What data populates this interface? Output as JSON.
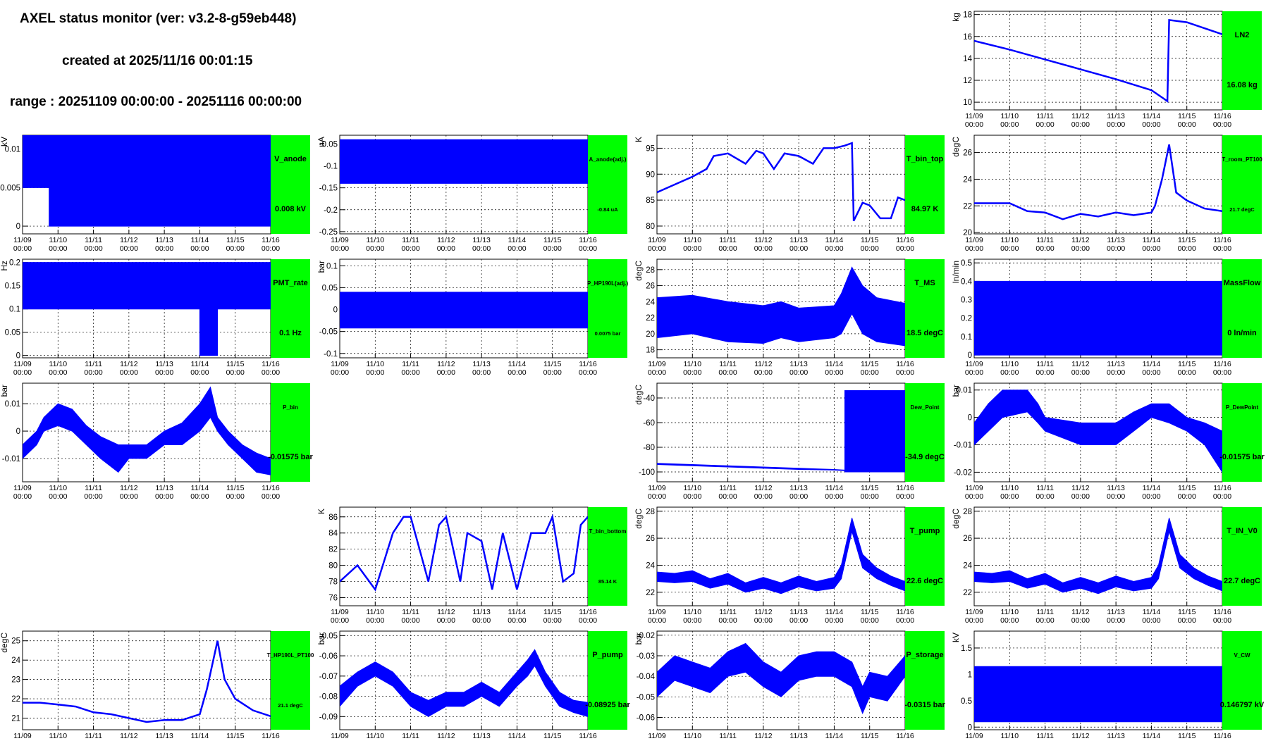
{
  "header": {
    "title": "AXEL status monitor (ver: v3.2-8-g59eb448)",
    "created": "created at 2025/11/16 00:01:15",
    "range": "range : 20251109 00:00:00 - 20251116 00:00:00"
  },
  "colors": {
    "series": "#0000ff",
    "status_panel": "#00ff00",
    "grid": "#000000"
  },
  "x_labels": [
    "11/09",
    "11/10",
    "11/11",
    "11/12",
    "11/13",
    "11/14",
    "11/15",
    "11/16"
  ],
  "x_time_label": "00:00",
  "chart_data": [
    {
      "id": "LN2",
      "type": "line",
      "name": "LN2",
      "value_label": "16.08 kg",
      "ylabel": "kg",
      "ylim": [
        9.3,
        18.3
      ],
      "yticks": [
        10,
        12,
        14,
        16,
        18
      ],
      "yticklabels": [
        "10",
        "12",
        "14",
        "16",
        "18"
      ],
      "style": "line",
      "x": [
        0,
        1,
        2,
        3,
        4,
        5,
        5.45,
        5.5,
        6,
        7
      ],
      "y": [
        15.6,
        14.8,
        13.9,
        13.0,
        12.1,
        11.1,
        10.1,
        17.5,
        17.3,
        16.2
      ]
    },
    {
      "id": "V_anode",
      "type": "line",
      "name": "V_anode",
      "value_label": "0.008 kV",
      "ylabel": "kV",
      "ylim": [
        -0.001,
        0.0118
      ],
      "yticks": [
        0,
        0.005,
        0.01
      ],
      "yticklabels": [
        "0",
        "0.005",
        "0.01"
      ],
      "style": "band",
      "x": [
        0,
        0.75,
        0.75,
        7
      ],
      "lo": [
        0.005,
        0.005,
        0,
        0
      ],
      "hi": [
        0.0118,
        0.0118,
        0.0118,
        0.0118
      ]
    },
    {
      "id": "A_anode",
      "type": "line",
      "name": "A_anode(adj.)",
      "value_label": "-0.84 uA",
      "ylabel": "uA",
      "ylim": [
        -0.255,
        -0.03
      ],
      "yticks": [
        -0.25,
        -0.2,
        -0.15,
        -0.1,
        -0.05
      ],
      "yticklabels": [
        "-0.25",
        "-0.2",
        "-0.15",
        "-0.1",
        "-0.05"
      ],
      "style": "band",
      "x": [
        0,
        7
      ],
      "lo": [
        -0.14,
        -0.14
      ],
      "hi": [
        -0.04,
        -0.04
      ]
    },
    {
      "id": "T_bin_top",
      "type": "line",
      "name": "T_bin_top",
      "value_label": "84.97 K",
      "ylabel": "K",
      "ylim": [
        78.5,
        97.5
      ],
      "yticks": [
        80,
        85,
        90,
        95
      ],
      "yticklabels": [
        "80",
        "85",
        "90",
        "95"
      ],
      "style": "line",
      "x": [
        0,
        0.5,
        1,
        1.4,
        1.6,
        2,
        2.5,
        2.8,
        3,
        3.3,
        3.6,
        4,
        4.4,
        4.7,
        5,
        5.3,
        5.5,
        5.55,
        5.8,
        6,
        6.3,
        6.6,
        6.8,
        7
      ],
      "y": [
        86.5,
        88,
        89.5,
        91,
        93.5,
        94,
        92,
        94.5,
        94,
        91,
        94,
        93.5,
        92,
        95,
        95,
        95.5,
        96,
        81,
        84.5,
        84,
        81.5,
        81.5,
        85.5,
        85
      ]
    },
    {
      "id": "T_room_PT100",
      "type": "line",
      "name": "T_room_PT100",
      "value_label": "21.7 degC",
      "ylabel": "degC",
      "ylim": [
        19.9,
        27.3
      ],
      "yticks": [
        20,
        22,
        24,
        26
      ],
      "yticklabels": [
        "20",
        "22",
        "24",
        "26"
      ],
      "style": "line",
      "x": [
        0,
        1,
        1.5,
        2,
        2.5,
        3,
        3.5,
        4,
        4.5,
        5,
        5.1,
        5.3,
        5.5,
        5.7,
        6,
        6.5,
        7
      ],
      "y": [
        22.2,
        22.2,
        21.6,
        21.5,
        21.0,
        21.4,
        21.2,
        21.5,
        21.3,
        21.5,
        22,
        24,
        26.6,
        23,
        22.4,
        21.8,
        21.6
      ]
    },
    {
      "id": "PMT_rate",
      "type": "line",
      "name": "PMT_rate",
      "value_label": "0.1 Hz",
      "ylabel": "Hz",
      "ylim": [
        -0.005,
        0.207
      ],
      "yticks": [
        0,
        0.05,
        0.1,
        0.15,
        0.2
      ],
      "yticklabels": [
        "0",
        "0.05",
        "0.1",
        "0.15",
        "0.2"
      ],
      "style": "band",
      "x": [
        0,
        5,
        5,
        5.5,
        5.5,
        7
      ],
      "lo": [
        0.1,
        0.1,
        0,
        0,
        0.1,
        0.1
      ],
      "hi": [
        0.2,
        0.2,
        0.2,
        0.2,
        0.2,
        0.2
      ]
    },
    {
      "id": "P_HP190L",
      "type": "line",
      "name": "P_HP190L(adj.)",
      "value_label": "0.0075 bar",
      "ylabel": "bar",
      "ylim": [
        -0.11,
        0.115
      ],
      "yticks": [
        -0.1,
        -0.05,
        0,
        0.05,
        0.1
      ],
      "yticklabels": [
        "-0.1",
        "-0.05",
        "0",
        "0.05",
        "0.1"
      ],
      "style": "band",
      "x": [
        0,
        7
      ],
      "lo": [
        -0.042,
        -0.042
      ],
      "hi": [
        0.04,
        0.04
      ]
    },
    {
      "id": "T_MS",
      "type": "line",
      "name": "T_MS",
      "value_label": "18.5 degC",
      "ylabel": "degC",
      "ylim": [
        17,
        29.3
      ],
      "yticks": [
        18,
        20,
        22,
        24,
        26,
        28
      ],
      "yticklabels": [
        "18",
        "20",
        "22",
        "24",
        "26",
        "28"
      ],
      "style": "band",
      "x": [
        0,
        1,
        2,
        3,
        3.5,
        4,
        5,
        5.2,
        5.5,
        5.8,
        6.2,
        7
      ],
      "lo": [
        19.5,
        20,
        19,
        18.8,
        19.5,
        19,
        19.5,
        20,
        22.5,
        20,
        19,
        18.5
      ],
      "hi": [
        24.5,
        24.8,
        24,
        23.5,
        24,
        23.2,
        23.5,
        25,
        28.3,
        26,
        24.5,
        23.8
      ]
    },
    {
      "id": "MassFlow",
      "type": "line",
      "name": "MassFlow",
      "value_label": "0 ln/min",
      "ylabel": "ln/min",
      "ylim": [
        -0.015,
        0.52
      ],
      "yticks": [
        0,
        0.1,
        0.2,
        0.3,
        0.4,
        0.5
      ],
      "yticklabels": [
        "0",
        "0.1",
        "0.2",
        "0.3",
        "0.4",
        "0.5"
      ],
      "style": "band",
      "x": [
        0,
        7
      ],
      "lo": [
        0,
        0
      ],
      "hi": [
        0.4,
        0.4
      ]
    },
    {
      "id": "P_bin",
      "type": "line",
      "name": "P_bin",
      "value_label": "-0.01575 bar",
      "ylabel": "bar",
      "ylim": [
        -0.0185,
        0.0175
      ],
      "yticks": [
        -0.01,
        0,
        0.01
      ],
      "yticklabels": [
        "-0.01",
        "0",
        "0.01"
      ],
      "style": "band",
      "x": [
        0,
        0.4,
        0.6,
        1,
        1.4,
        1.8,
        2.2,
        2.7,
        3,
        3.5,
        4,
        4.5,
        5,
        5.3,
        5.5,
        5.8,
        6.2,
        6.6,
        7
      ],
      "lo": [
        -0.01,
        -0.005,
        0,
        0.002,
        0,
        -0.005,
        -0.01,
        -0.015,
        -0.01,
        -0.01,
        -0.005,
        -0.005,
        0,
        0.005,
        0,
        -0.005,
        -0.01,
        -0.015,
        -0.016
      ],
      "hi": [
        -0.005,
        0,
        0.005,
        0.01,
        0.008,
        0.002,
        -0.002,
        -0.005,
        -0.005,
        -0.005,
        0,
        0.003,
        0.01,
        0.016,
        0.005,
        0,
        -0.005,
        -0.008,
        -0.01
      ]
    },
    {
      "id": "Dew_Point",
      "type": "line",
      "name": "Dew_Point",
      "value_label": "-34.9 degC",
      "ylabel": "degC",
      "ylim": [
        -108,
        -28
      ],
      "yticks": [
        -100,
        -80,
        -60,
        -40
      ],
      "yticklabels": [
        "-100",
        "-80",
        "-60",
        "-40"
      ],
      "style": "band",
      "x": [
        0,
        1,
        2,
        3,
        4,
        5,
        5.3,
        5.3,
        7
      ],
      "lo": [
        -94,
        -95,
        -96,
        -97,
        -98,
        -98.5,
        -99,
        -100,
        -100
      ],
      "hi": [
        -93,
        -94,
        -95,
        -96,
        -97,
        -98,
        -98.5,
        -34,
        -34
      ]
    },
    {
      "id": "P_DewPoint",
      "type": "line",
      "name": "P_DewPoint",
      "value_label": "-0.01575 bar",
      "ylabel": "bar",
      "ylim": [
        -0.0235,
        0.0125
      ],
      "yticks": [
        -0.02,
        -0.01,
        0,
        0.01
      ],
      "yticklabels": [
        "-0.02",
        "-0.01",
        "0",
        "0.01"
      ],
      "style": "band",
      "x": [
        0,
        0.4,
        0.8,
        1.5,
        1.8,
        2,
        3,
        4,
        4.5,
        5,
        5.5,
        6,
        6.5,
        7
      ],
      "lo": [
        -0.01,
        -0.005,
        0,
        0.002,
        -0.002,
        -0.005,
        -0.01,
        -0.01,
        -0.005,
        0,
        -0.002,
        -0.005,
        -0.01,
        -0.02
      ],
      "hi": [
        -0.002,
        0.005,
        0.01,
        0.01,
        0.005,
        0,
        -0.002,
        -0.002,
        0.002,
        0.005,
        0.005,
        0,
        -0.002,
        -0.005
      ]
    },
    {
      "id": "T_bin_bottom",
      "type": "line",
      "name": "T_bin_bottom",
      "value_label": "85.14 K",
      "ylabel": "K",
      "ylim": [
        75,
        87.2
      ],
      "yticks": [
        76,
        78,
        80,
        82,
        84,
        86
      ],
      "yticklabels": [
        "76",
        "78",
        "80",
        "82",
        "84",
        "86"
      ],
      "style": "line",
      "x": [
        0,
        0.5,
        1,
        1.5,
        1.8,
        2,
        2.5,
        2.8,
        3,
        3.4,
        3.6,
        4,
        4.3,
        4.6,
        5,
        5.4,
        5.8,
        6,
        6.3,
        6.6,
        6.8,
        7
      ],
      "y": [
        78,
        80,
        77,
        84,
        86,
        86,
        78,
        85,
        86,
        78,
        84,
        83,
        77,
        84,
        77,
        84,
        84,
        86,
        78,
        79,
        85,
        86
      ]
    },
    {
      "id": "T_pump",
      "type": "line",
      "name": "T_pump",
      "value_label": "22.6 degC",
      "ylabel": "degC",
      "ylim": [
        21,
        28.3
      ],
      "yticks": [
        22,
        24,
        26,
        28
      ],
      "yticklabels": [
        "22",
        "24",
        "26",
        "28"
      ],
      "style": "band",
      "x": [
        0,
        0.5,
        1,
        1.5,
        2,
        2.5,
        3,
        3.5,
        4,
        4.5,
        5,
        5.2,
        5.5,
        5.8,
        6.2,
        6.6,
        7
      ],
      "lo": [
        22.8,
        22.7,
        22.8,
        22.3,
        22.6,
        22.0,
        22.3,
        21.9,
        22.4,
        22.1,
        22.3,
        23.0,
        26.5,
        23.8,
        23.0,
        22.5,
        22.1
      ],
      "hi": [
        23.5,
        23.4,
        23.6,
        23.0,
        23.4,
        22.7,
        23.1,
        22.7,
        23.2,
        22.8,
        23.1,
        24.0,
        27.5,
        24.8,
        23.8,
        23.2,
        22.8
      ]
    },
    {
      "id": "T_IN_V0",
      "type": "line",
      "name": "T_IN_V0",
      "value_label": "22.7 degC",
      "ylabel": "degC",
      "ylim": [
        21,
        28.3
      ],
      "yticks": [
        22,
        24,
        26,
        28
      ],
      "yticklabels": [
        "22",
        "24",
        "26",
        "28"
      ],
      "style": "band",
      "x": [
        0,
        0.5,
        1,
        1.5,
        2,
        2.5,
        3,
        3.5,
        4,
        4.5,
        5,
        5.2,
        5.5,
        5.8,
        6.2,
        6.6,
        7
      ],
      "lo": [
        22.8,
        22.7,
        22.8,
        22.3,
        22.6,
        22.0,
        22.3,
        21.9,
        22.4,
        22.1,
        22.3,
        23.0,
        26.5,
        23.8,
        23.0,
        22.5,
        22.1
      ],
      "hi": [
        23.5,
        23.4,
        23.6,
        23.0,
        23.4,
        22.7,
        23.1,
        22.7,
        23.2,
        22.8,
        23.1,
        24.0,
        27.5,
        24.8,
        23.8,
        23.2,
        22.8
      ]
    },
    {
      "id": "T_HP190L_PT100",
      "type": "line",
      "name": "T_HP190L_PT100",
      "value_label": "21.1 degC",
      "ylabel": "degC",
      "ylim": [
        20.4,
        25.5
      ],
      "yticks": [
        21,
        22,
        23,
        24,
        25
      ],
      "yticklabels": [
        "21",
        "22",
        "23",
        "24",
        "25"
      ],
      "style": "line",
      "x": [
        0,
        0.5,
        1,
        1.5,
        2,
        2.5,
        3,
        3.5,
        4,
        4.5,
        5,
        5.2,
        5.5,
        5.7,
        6,
        6.5,
        7
      ],
      "y": [
        21.8,
        21.8,
        21.7,
        21.6,
        21.3,
        21.2,
        21.0,
        20.8,
        20.9,
        20.9,
        21.2,
        22.5,
        25.0,
        23.0,
        22.0,
        21.4,
        21.1
      ]
    },
    {
      "id": "P_pump",
      "type": "line",
      "name": "P_pump",
      "value_label": "-0.08925 bar",
      "ylabel": "bar",
      "ylim": [
        -0.0965,
        -0.0478
      ],
      "yticks": [
        -0.09,
        -0.08,
        -0.07,
        -0.06,
        -0.05
      ],
      "yticklabels": [
        "-0.09",
        "-0.08",
        "-0.07",
        "-0.06",
        "-0.05"
      ],
      "style": "band",
      "x": [
        0,
        0.5,
        1,
        1.5,
        2,
        2.5,
        3,
        3.5,
        4,
        4.5,
        5,
        5.3,
        5.5,
        5.8,
        6.2,
        6.6,
        7
      ],
      "lo": [
        -0.085,
        -0.075,
        -0.07,
        -0.075,
        -0.085,
        -0.09,
        -0.085,
        -0.085,
        -0.08,
        -0.085,
        -0.075,
        -0.07,
        -0.065,
        -0.075,
        -0.085,
        -0.088,
        -0.09
      ],
      "hi": [
        -0.075,
        -0.068,
        -0.063,
        -0.068,
        -0.078,
        -0.082,
        -0.078,
        -0.078,
        -0.073,
        -0.078,
        -0.068,
        -0.062,
        -0.057,
        -0.068,
        -0.078,
        -0.082,
        -0.083
      ]
    },
    {
      "id": "P_storage",
      "type": "line",
      "name": "P_storage",
      "value_label": "-0.0315 bar",
      "ylabel": "bar",
      "ylim": [
        -0.066,
        -0.018
      ],
      "yticks": [
        -0.06,
        -0.05,
        -0.04,
        -0.03,
        -0.02
      ],
      "yticklabels": [
        "-0.06",
        "-0.05",
        "-0.04",
        "-0.03",
        "-0.02"
      ],
      "style": "band",
      "x": [
        0,
        0.5,
        1,
        1.5,
        2,
        2.5,
        3,
        3.5,
        4,
        4.5,
        5,
        5.5,
        5.8,
        6,
        6.5,
        7
      ],
      "lo": [
        -0.05,
        -0.042,
        -0.045,
        -0.048,
        -0.04,
        -0.038,
        -0.045,
        -0.05,
        -0.042,
        -0.04,
        -0.04,
        -0.045,
        -0.058,
        -0.05,
        -0.052,
        -0.04
      ],
      "hi": [
        -0.038,
        -0.03,
        -0.033,
        -0.036,
        -0.028,
        -0.024,
        -0.033,
        -0.038,
        -0.03,
        -0.028,
        -0.028,
        -0.033,
        -0.045,
        -0.038,
        -0.04,
        -0.03
      ]
    },
    {
      "id": "V_CW",
      "type": "line",
      "name": "V_CW",
      "value_label": "0.146797 kV",
      "ylabel": "kV",
      "ylim": [
        -0.05,
        1.82
      ],
      "yticks": [
        0,
        0.5,
        1,
        1.5
      ],
      "yticklabels": [
        "0",
        "0.5",
        "1",
        "1.5"
      ],
      "style": "band",
      "x": [
        0,
        7
      ],
      "lo": [
        0.1,
        0.1
      ],
      "hi": [
        1.15,
        1.15
      ]
    }
  ]
}
